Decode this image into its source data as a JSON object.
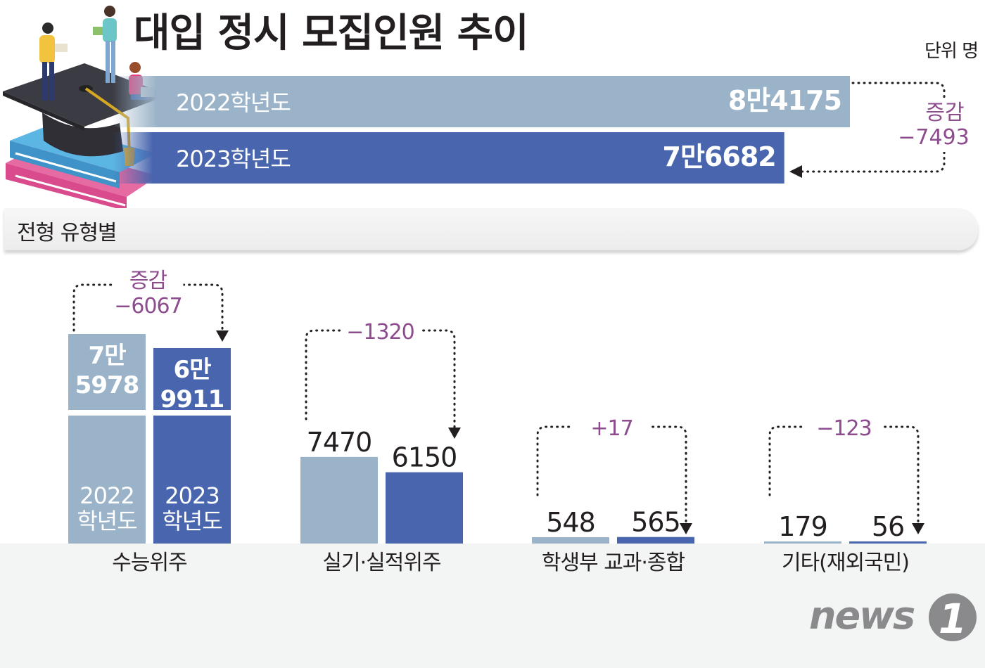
{
  "title": "대입 정시 모집인원 추이",
  "unit": "단위 명",
  "section_label": "전형 유형별",
  "brand": "news1",
  "colors": {
    "y2022": "#9bb3c8",
    "y2023": "#4865ae",
    "change": "#8d4c8d",
    "text": "#231f20"
  },
  "icons": [
    "graduation-cap-icon",
    "book-stack-icon",
    "student-illustration-icon"
  ],
  "chart_data": [
    {
      "type": "bar",
      "orientation": "horizontal",
      "categories": [
        "2022학년도",
        "2023학년도"
      ],
      "values": [
        84175,
        76682
      ],
      "value_labels": [
        "8만4175",
        "7만6682"
      ],
      "change_label": "증감",
      "change_value": "−7493"
    },
    {
      "type": "bar",
      "categories": [
        "수능위주",
        "실기·실적위주",
        "학생부 교과·종합",
        "기타(재외국민)"
      ],
      "series": [
        {
          "name": "2022 학년도",
          "values": [
            75978,
            7470,
            548,
            179
          ]
        },
        {
          "name": "2023 학년도",
          "values": [
            69911,
            6150,
            565,
            56
          ]
        }
      ],
      "value_labels": [
        [
          "7만 5978",
          "6만 9911"
        ],
        [
          "7470",
          "6150"
        ],
        [
          "548",
          "565"
        ],
        [
          "179",
          "56"
        ]
      ],
      "change_label": "증감",
      "changes": [
        "−6067",
        "−1320",
        "+17",
        "−123"
      ],
      "bar_captions": [
        "2022 학년도",
        "2023 학년도"
      ]
    }
  ]
}
